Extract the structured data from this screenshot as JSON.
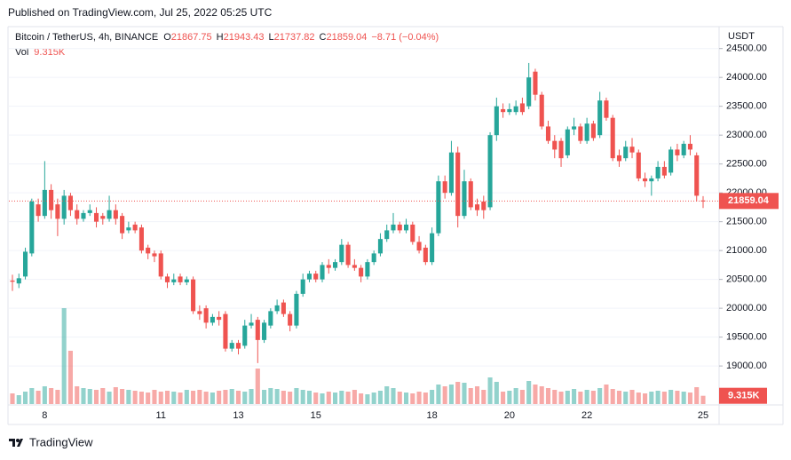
{
  "published": "Published on TradingView.com, Jul 25, 2022 05:25 UTC",
  "footer": "TradingView",
  "chart_data": {
    "type": "candlestick",
    "title": "Bitcoin / TetherUS, 4h, BINANCE",
    "ohlc_letters": [
      "O",
      "H",
      "L",
      "C"
    ],
    "change": "−8.71 (−0.04%)",
    "volume_title": "Vol",
    "last_volume_label": "9.315K",
    "currency": "USDT",
    "up_color": "#26a69a",
    "down_color": "#ef5350",
    "categories": [
      null,
      null,
      null,
      null,
      null,
      "8",
      null,
      null,
      null,
      null,
      null,
      null,
      null,
      null,
      null,
      null,
      null,
      null,
      null,
      null,
      null,
      null,
      null,
      "11",
      null,
      null,
      null,
      null,
      null,
      null,
      null,
      null,
      null,
      null,
      null,
      "13",
      null,
      null,
      null,
      null,
      null,
      null,
      null,
      null,
      null,
      null,
      null,
      "15",
      null,
      null,
      null,
      null,
      null,
      null,
      null,
      null,
      null,
      null,
      null,
      null,
      null,
      null,
      null,
      null,
      null,
      "18",
      null,
      null,
      null,
      null,
      null,
      null,
      null,
      null,
      null,
      null,
      null,
      "20",
      null,
      null,
      null,
      null,
      null,
      null,
      null,
      null,
      null,
      null,
      null,
      "22",
      null,
      null,
      null,
      null,
      null,
      null,
      null,
      null,
      null,
      null,
      null,
      null,
      null,
      null,
      null,
      null,
      null,
      "25"
    ],
    "open": [
      20480,
      20430,
      20550,
      20950,
      21800,
      21600,
      22050,
      21800,
      21550,
      21950,
      21700,
      21550,
      21650,
      21650,
      21600,
      21550,
      21700,
      21600,
      21350,
      21450,
      21400,
      21050,
      20950,
      20950,
      20550,
      20450,
      20550,
      20450,
      20500,
      19950,
      20000,
      19750,
      19850,
      19900,
      19300,
      19400,
      19350,
      19700,
      19800,
      19450,
      19700,
      19950,
      20100,
      19900,
      19700,
      20250,
      20500,
      20600,
      20500,
      20750,
      20700,
      20800,
      21100,
      20750,
      20700,
      20550,
      20800,
      20950,
      21200,
      21350,
      21450,
      21350,
      21450,
      21150,
      21050,
      20800,
      21300,
      22200,
      22000,
      22700,
      21600,
      22200,
      21800,
      21850,
      21750,
      23000,
      23450,
      23400,
      23400,
      23550,
      23500,
      24100,
      23700,
      23150,
      22900,
      22900,
      22650,
      23100,
      23150,
      22900,
      23200,
      23000,
      23600,
      23300,
      22650,
      22600,
      22800,
      22700,
      22250,
      22200,
      22250,
      22450,
      22350,
      22750,
      22650,
      22850,
      22650,
      21867.75
    ],
    "high": [
      20580,
      20600,
      21050,
      21900,
      21900,
      22550,
      22150,
      21900,
      22050,
      22000,
      21800,
      21700,
      21800,
      21750,
      21650,
      21950,
      21800,
      21650,
      21500,
      21500,
      21450,
      21100,
      21000,
      21000,
      20600,
      20600,
      20600,
      20550,
      20550,
      20050,
      20050,
      19900,
      19950,
      19950,
      19450,
      19450,
      19800,
      19900,
      19850,
      19800,
      20000,
      20150,
      20150,
      19950,
      20300,
      20600,
      20650,
      20650,
      20800,
      20850,
      20850,
      21200,
      21150,
      20850,
      20750,
      20850,
      21000,
      21300,
      21450,
      21650,
      21500,
      21550,
      21500,
      21250,
      21100,
      21400,
      22300,
      22300,
      22900,
      22800,
      22400,
      22250,
      21900,
      21950,
      23050,
      23650,
      23550,
      23550,
      23600,
      23650,
      24250,
      24150,
      23750,
      23250,
      23000,
      22950,
      23150,
      23300,
      23200,
      23300,
      23250,
      23750,
      23650,
      23350,
      22750,
      22900,
      22950,
      22750,
      22350,
      22300,
      22550,
      22550,
      22800,
      22850,
      22900,
      23000,
      22700,
      21943.43
    ],
    "low": [
      20300,
      20350,
      20500,
      20900,
      21500,
      21550,
      21550,
      21250,
      21450,
      21600,
      21450,
      21500,
      21600,
      21400,
      21450,
      21500,
      21450,
      21200,
      21300,
      21300,
      20950,
      20850,
      20800,
      20500,
      20350,
      20400,
      20400,
      20400,
      19900,
      19800,
      19650,
      19700,
      19700,
      19250,
      19250,
      19200,
      19300,
      19650,
      19050,
      19400,
      19650,
      19900,
      19850,
      19600,
      19650,
      20200,
      20450,
      20450,
      20450,
      20600,
      20650,
      20750,
      20700,
      20650,
      20450,
      20500,
      20750,
      20900,
      21150,
      21300,
      21300,
      21300,
      21100,
      20950,
      20750,
      20750,
      21250,
      21900,
      21950,
      21400,
      21550,
      21700,
      21600,
      21550,
      21700,
      22900,
      23300,
      23350,
      23350,
      23350,
      23450,
      23600,
      23100,
      22850,
      22600,
      22450,
      22600,
      23000,
      22850,
      22850,
      22900,
      22950,
      23250,
      22550,
      22450,
      22550,
      22600,
      22200,
      22100,
      21950,
      22200,
      22250,
      22300,
      22550,
      22600,
      22650,
      21850,
      21737.82
    ],
    "close": [
      20460,
      20520,
      20980,
      21850,
      21600,
      22050,
      21700,
      21550,
      21950,
      21700,
      21550,
      21650,
      21700,
      21500,
      21550,
      21700,
      21550,
      21300,
      21400,
      21350,
      21000,
      20950,
      20900,
      20550,
      20450,
      20500,
      20450,
      20500,
      19950,
      19900,
      19750,
      19850,
      19800,
      19300,
      19400,
      19300,
      19700,
      19750,
      19450,
      19750,
      19950,
      20050,
      19900,
      19700,
      20250,
      20500,
      20600,
      20500,
      20750,
      20700,
      20800,
      21100,
      20750,
      20700,
      20550,
      20800,
      20950,
      21200,
      21350,
      21450,
      21350,
      21450,
      21150,
      21000,
      20800,
      21300,
      22200,
      22000,
      22700,
      21600,
      22200,
      21750,
      21700,
      21700,
      23000,
      23500,
      23400,
      23450,
      23500,
      23400,
      24000,
      23700,
      23150,
      22900,
      22750,
      22600,
      23100,
      23150,
      22900,
      23200,
      22950,
      23600,
      23300,
      22600,
      22550,
      22800,
      22700,
      22250,
      22200,
      22250,
      22450,
      22300,
      22750,
      22650,
      22850,
      22750,
      21950,
      21859.04
    ],
    "volume": [
      12,
      10,
      14,
      18,
      15,
      20,
      18,
      16,
      108,
      60,
      20,
      18,
      17,
      16,
      18,
      14,
      19,
      17,
      16,
      15,
      14,
      13,
      16,
      14,
      15,
      14,
      13,
      16,
      15,
      16,
      14,
      13,
      15,
      16,
      17,
      15,
      14,
      17,
      40,
      16,
      18,
      17,
      15,
      14,
      18,
      16,
      15,
      13,
      12,
      14,
      13,
      15,
      14,
      16,
      12,
      11,
      13,
      15,
      20,
      18,
      14,
      13,
      12,
      14,
      13,
      16,
      22,
      20,
      22,
      25,
      24,
      18,
      20,
      16,
      30,
      25,
      14,
      15,
      18,
      16,
      26,
      22,
      20,
      18,
      16,
      14,
      15,
      17,
      14,
      16,
      15,
      18,
      22,
      17,
      15,
      14,
      16,
      13,
      12,
      14,
      15,
      14,
      16,
      15,
      14,
      13,
      19,
      9.315
    ],
    "ylim": [
      18340,
      24880
    ],
    "yticks": [
      {
        "value": 19000,
        "label": "19000.00"
      },
      {
        "value": 19500,
        "label": "19500.00"
      },
      {
        "value": 20000,
        "label": "20000.00"
      },
      {
        "value": 20500,
        "label": "20500.00"
      },
      {
        "value": 21000,
        "label": "21000.00"
      },
      {
        "value": 21500,
        "label": "21500.00"
      },
      {
        "value": 22000,
        "label": "22000.00"
      },
      {
        "value": 22500,
        "label": "22500.00"
      },
      {
        "value": 23000,
        "label": "23000.00"
      },
      {
        "value": 23500,
        "label": "23500.00"
      },
      {
        "value": 24000,
        "label": "24000.00"
      },
      {
        "value": 24500,
        "label": "24500.00"
      }
    ],
    "grid": true
  }
}
